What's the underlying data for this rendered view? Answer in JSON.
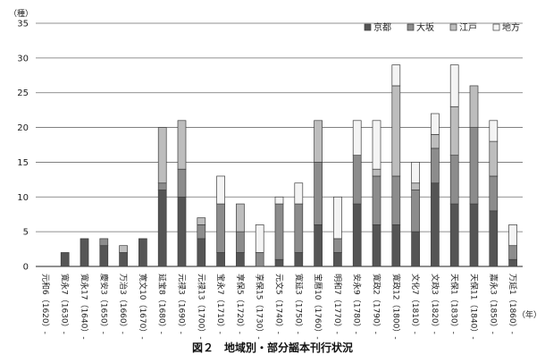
{
  "chart_data": {
    "type": "bar",
    "stacked": true,
    "ylabel": "（種）",
    "xlabel": "（年）",
    "caption": "図２　地域別・部分謡本刊行状況",
    "ylim": [
      0,
      35
    ],
    "yticks": [
      0,
      5,
      10,
      15,
      20,
      25,
      30,
      35
    ],
    "grid": true,
    "legend_position": "top-right",
    "categories": [
      "元和6（1620）-",
      "寛永7（1630）-",
      "寛永17（1640）-",
      "慶安3（1650）-",
      "万治3（1660）-",
      "寛文10（1670）-",
      "延宝8（1680）-",
      "元禄3（1690）-",
      "元禄13（1700）-",
      "宝永7（1710）-",
      "享保5（1720）-",
      "享保15（1730）-",
      "元文5（1740）-",
      "寛延3（1750）-",
      "宝暦10（1760）-",
      "明和7（1770）-",
      "安永9（1780）-",
      "寛政2（1790）-",
      "寛政12（1800）-",
      "文化7（1810）-",
      "文政3（1820）-",
      "天保1（1830）-",
      "天保11（1840）-",
      "嘉永3（1850）-",
      "万延1（1860）-"
    ],
    "series": [
      {
        "name": "京都",
        "color": "#555555",
        "values": [
          0,
          2,
          4,
          3,
          2,
          4,
          11,
          10,
          4,
          2,
          2,
          0,
          1,
          2,
          6,
          2,
          9,
          6,
          6,
          5,
          12,
          9,
          9,
          8,
          1
        ]
      },
      {
        "name": "大坂",
        "color": "#8c8c8c",
        "values": [
          0,
          0,
          0,
          1,
          0,
          0,
          1,
          4,
          2,
          7,
          3,
          2,
          8,
          7,
          9,
          2,
          7,
          7,
          7,
          6,
          5,
          7,
          11,
          5,
          2
        ]
      },
      {
        "name": "江戸",
        "color": "#bdbdbd",
        "values": [
          0,
          0,
          0,
          0,
          1,
          0,
          8,
          7,
          1,
          0,
          4,
          0,
          0,
          0,
          6,
          0,
          0,
          1,
          13,
          1,
          2,
          7,
          6,
          5,
          0
        ]
      },
      {
        "name": "地方",
        "color": "#f4f4f4",
        "values": [
          0,
          0,
          0,
          0,
          0,
          0,
          0,
          0,
          0,
          4,
          0,
          4,
          1,
          3,
          0,
          6,
          5,
          7,
          3,
          3,
          3,
          6,
          0,
          3,
          3
        ]
      }
    ]
  }
}
